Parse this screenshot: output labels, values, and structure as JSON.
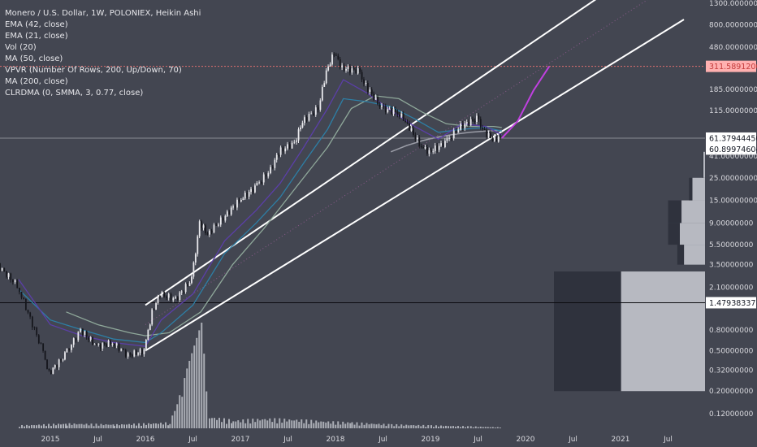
{
  "chart_data": {
    "type": "candlestick",
    "title": "Monero / U.S. Dollar, 1W, POLONIEX, Heikin Ashi",
    "indicators": [
      "EMA (42, close)",
      "EMA (21, close)",
      "Vol (20)",
      "MA (50, close)",
      "VPVR (Number Of Rows, 200, Up/Down, 70)",
      "MA (200, close)",
      "CLRDMA (0, SMMA, 3, 0.77, close)"
    ],
    "y_axis": {
      "scale": "log",
      "ticks": [
        "1300.00000000",
        "800.00000000",
        "480.00000000",
        "311.58912000",
        "185.00000000",
        "115.00000000",
        "61.37944450",
        "60.89974604",
        "41.00000000",
        "25.00000000",
        "15.00000000",
        "9.00000000",
        "5.50000000",
        "3.50000000",
        "2.10000000",
        "1.47938337",
        "0.80000000",
        "0.50000000",
        "0.32000000",
        "0.20000000",
        "0.12000000"
      ]
    },
    "x_axis": {
      "ticks": [
        "2015",
        "Jul",
        "2016",
        "Jul",
        "2017",
        "Jul",
        "2018",
        "Jul",
        "2019",
        "Jul",
        "2020",
        "Jul",
        "2021",
        "Jul"
      ]
    },
    "price_labels": {
      "target": {
        "value": "311.58912000",
        "color": "#ffb0b0",
        "text_color": "#c43b3b"
      },
      "current": {
        "value": "61.37944450",
        "color": "#ffffff",
        "text_color": "#131722"
      },
      "secondary": {
        "value": "60.89974604",
        "color": "#ffffff",
        "text_color": "#131722"
      },
      "horizontal": {
        "value": "1.47938337",
        "color": "#ffffff",
        "text_color": "#131722"
      }
    },
    "price_series": {
      "dates": [
        "2014-06",
        "2014-09",
        "2014-12",
        "2015-01",
        "2015-03",
        "2015-05",
        "2015-07",
        "2015-09",
        "2015-11",
        "2016-01",
        "2016-02",
        "2016-03",
        "2016-05",
        "2016-07",
        "2016-08",
        "2016-09",
        "2016-11",
        "2017-01",
        "2017-03",
        "2017-05",
        "2017-06",
        "2017-08",
        "2017-09",
        "2017-11",
        "2017-12",
        "2018-01",
        "2018-02",
        "2018-04",
        "2018-05",
        "2018-07",
        "2018-09",
        "2018-10",
        "2018-12",
        "2019-01",
        "2019-03",
        "2019-05",
        "2019-07",
        "2019-08",
        "2019-09",
        "2019-10"
      ],
      "close": [
        3.8,
        2.2,
        0.55,
        0.3,
        0.45,
        0.8,
        0.55,
        0.6,
        0.45,
        0.5,
        1.2,
        1.8,
        1.6,
        2.5,
        9,
        7,
        10,
        15,
        20,
        30,
        45,
        55,
        90,
        120,
        280,
        420,
        300,
        280,
        200,
        120,
        110,
        90,
        50,
        45,
        55,
        80,
        95,
        70,
        60,
        61.4
      ]
    },
    "ema42": {
      "dates": [
        "2014-09",
        "2015-01",
        "2015-05",
        "2015-09",
        "2016-01",
        "2016-03",
        "2016-07",
        "2016-11",
        "2017-03",
        "2017-06",
        "2017-09",
        "2017-12",
        "2018-02",
        "2018-05",
        "2018-08",
        "2018-11",
        "2019-02",
        "2019-05",
        "2019-08",
        "2019-10"
      ],
      "values": [
        2.0,
        1.0,
        0.8,
        0.65,
        0.6,
        0.75,
        1.4,
        4.5,
        9,
        16,
        35,
        75,
        150,
        140,
        125,
        95,
        70,
        75,
        78,
        72
      ]
    },
    "ema21": {
      "dates": [
        "2014-09",
        "2015-01",
        "2015-05",
        "2015-09",
        "2016-01",
        "2016-03",
        "2016-07",
        "2016-11",
        "2017-03",
        "2017-06",
        "2017-09",
        "2017-12",
        "2018-02",
        "2018-05",
        "2018-08",
        "2018-11",
        "2019-02",
        "2019-05",
        "2019-08",
        "2019-10"
      ],
      "values": [
        2.5,
        0.9,
        0.7,
        0.6,
        0.55,
        1.0,
        1.8,
        6,
        12,
        22,
        50,
        120,
        230,
        170,
        115,
        80,
        60,
        85,
        80,
        66
      ]
    },
    "ma50": {
      "dates": [
        "2015-03",
        "2015-07",
        "2015-11",
        "2016-01",
        "2016-04",
        "2016-08",
        "2016-12",
        "2017-04",
        "2017-08",
        "2017-12",
        "2018-03",
        "2018-06",
        "2018-09",
        "2018-12",
        "2019-03",
        "2019-06",
        "2019-09",
        "2019-10"
      ],
      "values": [
        1.2,
        0.9,
        0.75,
        0.7,
        0.75,
        1.2,
        3.5,
        8,
        20,
        50,
        120,
        160,
        150,
        110,
        85,
        80,
        80,
        78
      ]
    },
    "ma200": {
      "dates": [
        "2018-08",
        "2018-10",
        "2018-12",
        "2019-02",
        "2019-04",
        "2019-06",
        "2019-08",
        "2019-10"
      ],
      "values": [
        45,
        52,
        58,
        63,
        67,
        70,
        72,
        73
      ]
    },
    "projection": {
      "dates": [
        "2019-10",
        "2019-12",
        "2020-02",
        "2020-04"
      ],
      "values": [
        61.4,
        90,
        180,
        311.6
      ],
      "color": "#c040e0"
    },
    "channel_upper": {
      "start": [
        "2016-01",
        1.4
      ],
      "end": [
        "2021-09",
        5500
      ]
    },
    "channel_lower": {
      "start": [
        "2016-01",
        0.5
      ],
      "end": [
        "2021-09",
        900
      ]
    },
    "volume_profile": {
      "price_rows_from": [
        1.6,
        3.5,
        5.5,
        9,
        15,
        25
      ],
      "price_rows_to": [
        3.0,
        5.5,
        9,
        15,
        25,
        45
      ],
      "up_volume": [
        100,
        25,
        30,
        28,
        15,
        2
      ],
      "down_volume": [
        80,
        8,
        14,
        16,
        4,
        1
      ]
    },
    "volume_histogram": {
      "dates": [
        "2014-09",
        "2015-03",
        "2015-09",
        "2016-01",
        "2016-04",
        "2016-08",
        "2016-09",
        "2016-12",
        "2017-04",
        "2017-08",
        "2017-12",
        "2018-03",
        "2018-08",
        "2019-01",
        "2019-06",
        "2019-10"
      ],
      "values": [
        3,
        5,
        4,
        5,
        6,
        100,
        12,
        8,
        10,
        9,
        7,
        6,
        4,
        3,
        2,
        1
      ]
    }
  }
}
